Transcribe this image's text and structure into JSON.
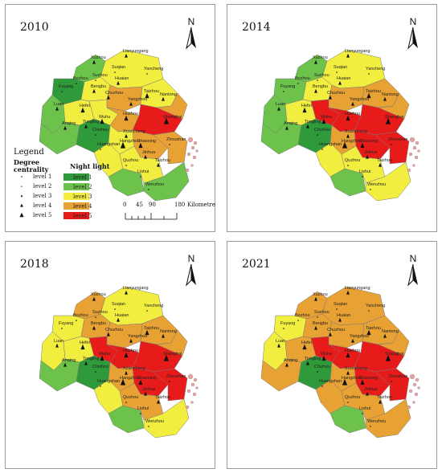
{
  "panels": [
    {
      "year": "2010",
      "colors": [
        "#6cc24a",
        "#2e9a3a",
        "#f2ee40",
        "#f2ee40",
        "#e8a133",
        "#f2ee40",
        "#6cc24a",
        "#f2ee40",
        "#f2ee40",
        "#e8a133",
        "#e81b1b",
        "#e8a133",
        "#6cc24a",
        "#2e9a3a",
        "#f2ee40",
        "#e8a133",
        "#e8a133",
        "#f2ee40",
        "#6cc24a",
        "#f2ee40",
        "#6cc24a"
      ]
    },
    {
      "year": "2014",
      "colors": [
        "#6cc24a",
        "#6cc24a",
        "#f2ee40",
        "#f2ee40",
        "#e8a133",
        "#e8a133",
        "#6cc24a",
        "#f2ee40",
        "#e81b1b",
        "#e81b1b",
        "#e81b1b",
        "#e8a133",
        "#6cc24a",
        "#2e9a3a",
        "#e8a133",
        "#e81b1b",
        "#e81b1b",
        "#f2ee40",
        "#6cc24a",
        "#f2ee40",
        "#f2ee40"
      ]
    },
    {
      "year": "2018",
      "colors": [
        "#e8a133",
        "#f2ee40",
        "#e8a133",
        "#f2ee40",
        "#e8a133",
        "#e8a133",
        "#f2ee40",
        "#f2ee40",
        "#e81b1b",
        "#e81b1b",
        "#e81b1b",
        "#e8a133",
        "#6cc24a",
        "#2e9a3a",
        "#e8a133",
        "#e81b1b",
        "#e81b1b",
        "#f2ee40",
        "#6cc24a",
        "#e8a133",
        "#f2ee40"
      ]
    },
    {
      "year": "2021",
      "colors": [
        "#e8a133",
        "#f2ee40",
        "#e8a133",
        "#e8a133",
        "#e8a133",
        "#e8a133",
        "#f2ee40",
        "#e8a133",
        "#e81b1b",
        "#e81b1b",
        "#e81b1b",
        "#e8a133",
        "#e8a133",
        "#2e9a3a",
        "#e8a133",
        "#e81b1b",
        "#e81b1b",
        "#e8a133",
        "#6cc24a",
        "#e8a133",
        "#e8a133"
      ]
    }
  ],
  "cities": [
    {
      "name": "Lianyungang"
    },
    {
      "name": "Xuzhou"
    },
    {
      "name": "Suqian"
    },
    {
      "name": "Yancheng"
    },
    {
      "name": "Bozhou"
    },
    {
      "name": "Suzhou"
    },
    {
      "name": "Huaian"
    },
    {
      "name": "Fuyang"
    },
    {
      "name": "Bengbu"
    },
    {
      "name": "Chuzhou"
    },
    {
      "name": "Taizhou"
    },
    {
      "name": "Nantong"
    },
    {
      "name": "Luan"
    },
    {
      "name": "Hefei"
    },
    {
      "name": "Yangzhou"
    },
    {
      "name": "Shanghai"
    },
    {
      "name": "Anqing"
    },
    {
      "name": "Tongling"
    },
    {
      "name": "Wuhu"
    },
    {
      "name": "Chizhou"
    },
    {
      "name": "Xuancheng"
    },
    {
      "name": "Huzhou"
    },
    {
      "name": "Huangshan"
    },
    {
      "name": "Hangzhou"
    },
    {
      "name": "Shaoxing"
    },
    {
      "name": "Zhoushan"
    },
    {
      "name": "Jinhua"
    },
    {
      "name": "Quzhou"
    },
    {
      "name": "Taizhou"
    },
    {
      "name": "Lishui"
    },
    {
      "name": "Wenzhou"
    }
  ],
  "north_label": "N",
  "legend": {
    "title": "Legend",
    "degree_title_1": "Degree",
    "degree_title_2": "centrality",
    "night_title": "Night light",
    "degree_levels": [
      "level 1",
      "level 2",
      "level 3",
      "level 4",
      "level 5"
    ],
    "night_levels": [
      {
        "label": "level 1",
        "color": "#2e9a3a"
      },
      {
        "label": "level 2",
        "color": "#6cc24a"
      },
      {
        "label": "level 3",
        "color": "#f2ee40"
      },
      {
        "label": "level 4",
        "color": "#e8a133"
      },
      {
        "label": "level 5",
        "color": "#e81b1b"
      }
    ]
  },
  "scale": {
    "ticks": [
      "0",
      "45",
      "90",
      "180"
    ],
    "unit": "Kilometre"
  }
}
